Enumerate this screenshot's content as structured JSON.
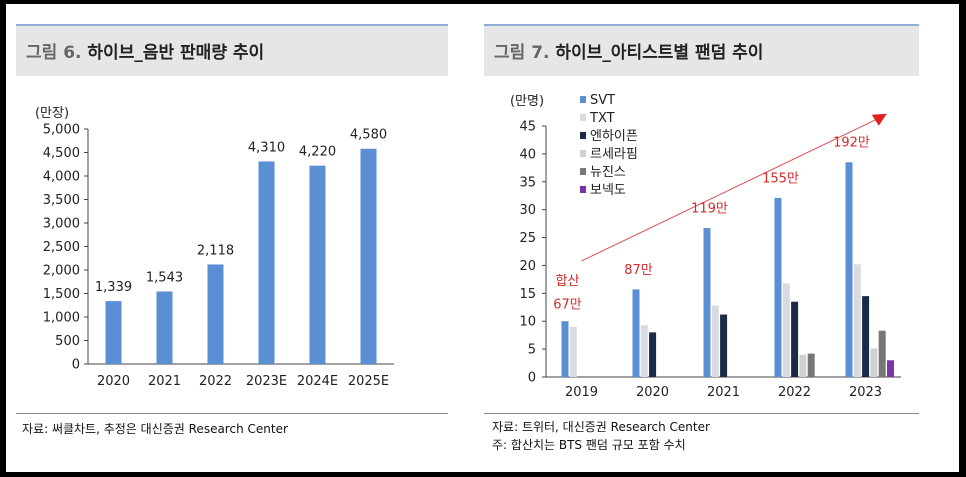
{
  "charts": [
    {
      "fig_label": "그림 6.",
      "fig_title": "하이브_음반 판매량 추이",
      "source_note": "자료: 써클차트, 추정은 대신증권 Research Center",
      "chart_data": {
        "type": "bar",
        "unit_label": "(만장)",
        "categories": [
          "2020",
          "2021",
          "2022",
          "2023E",
          "2024E",
          "2025E"
        ],
        "values": [
          1339,
          1543,
          2118,
          4310,
          4220,
          4580
        ],
        "data_labels": [
          "1,339",
          "1,543",
          "2,118",
          "4,310",
          "4,220",
          "4,580"
        ],
        "ylim": [
          0,
          5000
        ],
        "yticks": [
          0,
          500,
          1000,
          1500,
          2000,
          2500,
          3000,
          3500,
          4000,
          4500,
          5000
        ],
        "ytick_labels": [
          "0",
          "500",
          "1,000",
          "1,500",
          "2,000",
          "2,500",
          "3,000",
          "3,500",
          "4,000",
          "4,500",
          "5,000"
        ],
        "bar_color": "#5b8fd4",
        "grid": false
      }
    },
    {
      "fig_label": "그림 7.",
      "fig_title": "하이브_아티스트별 팬덤 추이",
      "source_note": "자료: 트위터, 대신증권 Research Center",
      "footnote": "주: 합산치는 BTS 팬덤 규모 포함 수치",
      "chart_data": {
        "type": "bar",
        "unit_label": "(만명)",
        "categories": [
          "2019",
          "2020",
          "2021",
          "2022",
          "2023"
        ],
        "ylim": [
          0,
          45
        ],
        "yticks": [
          0,
          5,
          10,
          15,
          20,
          25,
          30,
          35,
          40,
          45
        ],
        "ytick_labels": [
          "0",
          "5",
          "10",
          "15",
          "20",
          "25",
          "30",
          "35",
          "40",
          "45"
        ],
        "legend_position": "top-left",
        "series": [
          {
            "name": "SVT",
            "color": "#5b8fd4",
            "values": [
              10,
              15.7,
              26.7,
              32.1,
              38.5
            ]
          },
          {
            "name": "TXT",
            "color": "#d8dbe3",
            "values": [
              9,
              9.3,
              12.8,
              16.8,
              20.2
            ]
          },
          {
            "name": "엔하이픈",
            "color": "#1b2a45",
            "values": [
              null,
              8,
              11.2,
              13.5,
              14.5
            ]
          },
          {
            "name": "르세라핌",
            "color": "#d0d0d0",
            "values": [
              null,
              null,
              null,
              4,
              5.1
            ]
          },
          {
            "name": "뉴진스",
            "color": "#777777",
            "values": [
              null,
              null,
              null,
              4.2,
              8.3
            ]
          },
          {
            "name": "보넥도",
            "color": "#7a35a8",
            "values": [
              null,
              null,
              null,
              null,
              3
            ]
          }
        ],
        "annotations": [
          {
            "category": "2019",
            "text": "합산",
            "y": 16.5
          },
          {
            "category": "2019",
            "text": "67만",
            "y": 12.3
          },
          {
            "category": "2020",
            "text": "87만",
            "y": 18.5
          },
          {
            "category": "2021",
            "text": "119만",
            "y": 29.5
          },
          {
            "category": "2022",
            "text": "155만",
            "y": 34.9
          },
          {
            "category": "2023",
            "text": "192만",
            "y": 41.3
          }
        ],
        "annotation_color": "#d32a2a",
        "trend_arrow": {
          "color": "#e05050",
          "from": [
            0.5,
            20.8
          ],
          "to": [
            4.8,
            47.2
          ]
        },
        "grid": false
      }
    }
  ]
}
